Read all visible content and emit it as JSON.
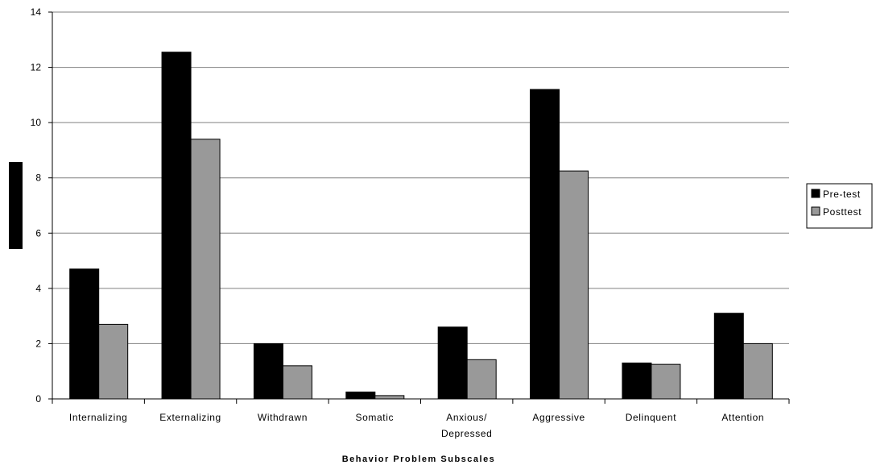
{
  "chart_data": {
    "type": "bar",
    "categories": [
      "Internalizing",
      "Externalizing",
      "Withdrawn",
      "Somatic",
      "Anxious/ Depressed",
      "Aggressive",
      "Delinquent",
      "Attention"
    ],
    "category_lines": [
      [
        "Internalizing"
      ],
      [
        "Externalizing"
      ],
      [
        "Withdrawn"
      ],
      [
        "Somatic"
      ],
      [
        "Anxious/",
        "Depressed"
      ],
      [
        "Aggressive"
      ],
      [
        "Delinquent"
      ],
      [
        "Attention"
      ]
    ],
    "series": [
      {
        "name": "Pre-test",
        "color": "#000000",
        "values": [
          4.7,
          12.55,
          2.0,
          0.25,
          2.6,
          11.2,
          1.3,
          3.1
        ]
      },
      {
        "name": "Posttest",
        "color": "#999999",
        "values": [
          2.7,
          9.4,
          1.2,
          0.12,
          1.42,
          8.25,
          1.25,
          2.0
        ]
      }
    ],
    "title": "",
    "xlabel": "Behavior Problem Subscales",
    "ylabel": "",
    "ylim": [
      0,
      14
    ],
    "yticks": [
      0,
      2,
      4,
      6,
      8,
      10,
      12,
      14
    ],
    "grid": true,
    "legend_position": "right"
  }
}
